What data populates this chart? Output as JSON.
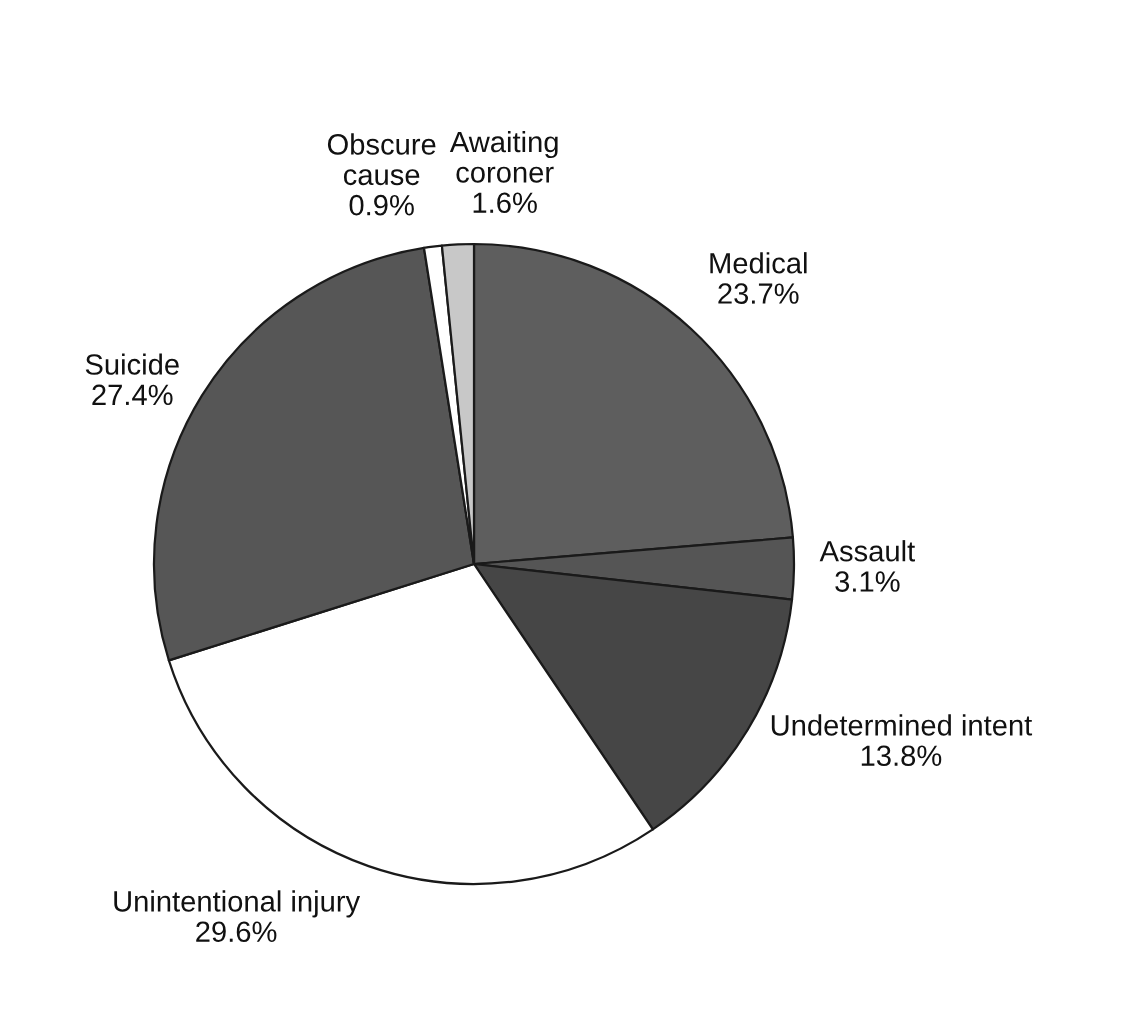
{
  "chart_data": {
    "type": "pie",
    "categories": [
      "Medical",
      "Assault",
      "Undetermined intent",
      "Unintentional injury",
      "Suicide",
      "Obscure\ncause",
      "Awaiting\ncoroner"
    ],
    "values": [
      23.7,
      3.1,
      13.8,
      29.6,
      27.4,
      0.9,
      1.6
    ],
    "value_labels": [
      "23.7%",
      "3.1%",
      "13.8%",
      "29.6%",
      "27.4%",
      "0.9%",
      "1.6%"
    ],
    "colors": [
      "#5e5e5e",
      "#555555",
      "#464646",
      "#ffffff",
      "#565656",
      "#ffffff",
      "#c8c8c8"
    ]
  }
}
